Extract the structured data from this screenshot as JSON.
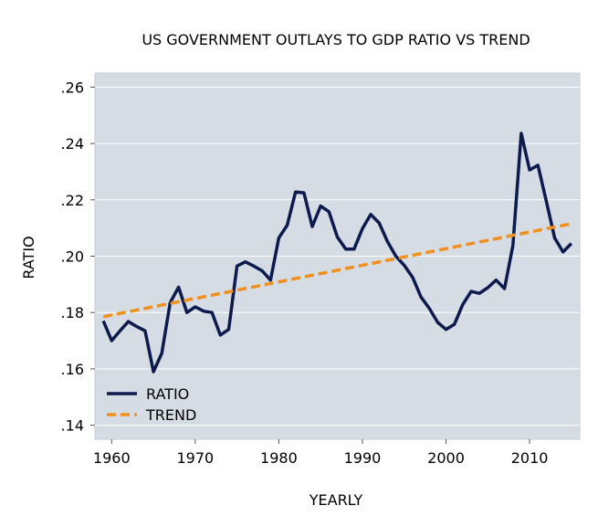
{
  "chart_data": {
    "type": "line",
    "title": "US GOVERNMENT OUTLAYS TO GDP RATIO VS TREND",
    "xlabel": "YEARLY",
    "ylabel": "RATIO",
    "xlim": [
      1958,
      2016
    ],
    "ylim": [
      0.135,
      0.265
    ],
    "x_ticks": [
      1960,
      1970,
      1980,
      1990,
      2000,
      2010
    ],
    "x_tick_labels": [
      "1960",
      "1970",
      "1980",
      "1990",
      "2000",
      "2010"
    ],
    "y_ticks": [
      0.14,
      0.16,
      0.18,
      0.2,
      0.22,
      0.24,
      0.26
    ],
    "y_tick_labels": [
      ".14",
      ".16",
      ".18",
      ".20",
      ".22",
      ".24",
      ".26"
    ],
    "grid": true,
    "legend_position": "bottom-left",
    "series": [
      {
        "name": "RATIO",
        "color": "#0d1a4d",
        "style": "solid",
        "x": [
          1959,
          1960,
          1961,
          1962,
          1963,
          1964,
          1965,
          1966,
          1967,
          1968,
          1969,
          1970,
          1971,
          1972,
          1973,
          1974,
          1975,
          1976,
          1977,
          1978,
          1979,
          1980,
          1981,
          1982,
          1983,
          1984,
          1985,
          1986,
          1987,
          1988,
          1989,
          1990,
          1991,
          1992,
          1993,
          1994,
          1995,
          1996,
          1997,
          1998,
          1999,
          2000,
          2001,
          2002,
          2003,
          2004,
          2005,
          2006,
          2007,
          2008,
          2009,
          2010,
          2011,
          2012,
          2013,
          2014,
          2015
        ],
        "values": [
          0.177,
          0.17,
          0.1735,
          0.1768,
          0.175,
          0.1735,
          0.159,
          0.1655,
          0.1835,
          0.189,
          0.18,
          0.182,
          0.1805,
          0.18,
          0.172,
          0.174,
          0.1965,
          0.198,
          0.1965,
          0.1948,
          0.1915,
          0.2065,
          0.211,
          0.2228,
          0.2225,
          0.2105,
          0.2178,
          0.2158,
          0.2068,
          0.2025,
          0.2025,
          0.2098,
          0.2148,
          0.2118,
          0.2052,
          0.2,
          0.1968,
          0.1925,
          0.1855,
          0.1815,
          0.1765,
          0.174,
          0.1758,
          0.1828,
          0.1875,
          0.1868,
          0.1888,
          0.1915,
          0.1885,
          0.2038,
          0.2436,
          0.2306,
          0.2323,
          0.2195,
          0.2065,
          0.2015,
          0.2045
        ]
      },
      {
        "name": "TREND",
        "color": "#f0901e",
        "style": "dashed",
        "x": [
          1959,
          2015
        ],
        "values": [
          0.1785,
          0.2115
        ]
      }
    ]
  }
}
